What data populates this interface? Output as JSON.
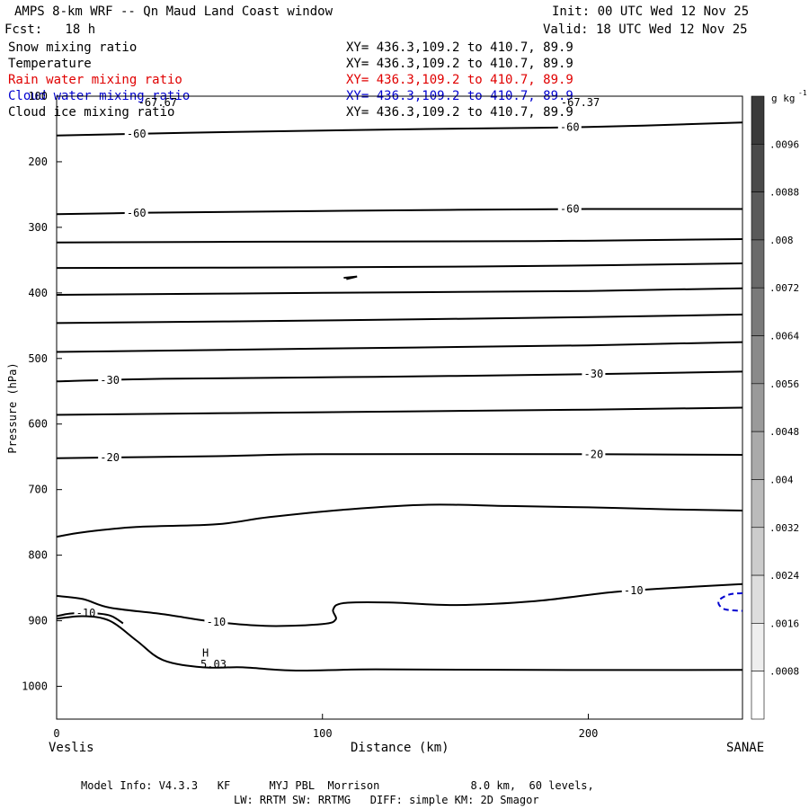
{
  "header": {
    "title": "AMPS 8-km WRF -- Qn Maud Land Coast window",
    "forecast": "Fcst:   18 h",
    "init": "Init: 00 UTC Wed 12 Nov 25",
    "valid": "Valid: 18 UTC Wed 12 Nov 25"
  },
  "legend": [
    {
      "label": "Snow mixing ratio",
      "xy": "XY= 436.3,109.2 to 410.7, 89.9",
      "color": "#000000"
    },
    {
      "label": "Temperature",
      "xy": "XY= 436.3,109.2 to 410.7, 89.9",
      "color": "#000000"
    },
    {
      "label": "Rain water mixing ratio",
      "xy": "XY= 436.3,109.2 to 410.7, 89.9",
      "color": "#e00000"
    },
    {
      "label": "Cloud water mixing ratio",
      "xy": "XY= 436.3,109.2 to 410.7, 89.9",
      "color": "#0000d0"
    },
    {
      "label": "Cloud ice mixing ratio",
      "xy": "XY= 436.3,109.2 to 410.7, 89.9",
      "color": "#000000"
    }
  ],
  "footer": {
    "line1": "Model Info: V4.3.3   KF      MYJ PBL  Morrison              8.0 km,  60 levels,",
    "line2": "LW: RRTM SW: RRTMG   DIFF: simple KM: 2D Smagor"
  },
  "colorbar": {
    "unit": "g kg",
    "unit_sup": "-1",
    "levels": [
      ".0096",
      ".0088",
      ".008",
      ".0072",
      ".0064",
      ".0056",
      ".0048",
      ".004",
      ".0032",
      ".0024",
      ".0016",
      ".0008"
    ],
    "fills": [
      "#3a3a3a",
      "#4a4a4a",
      "#5a5a5a",
      "#6a6a6a",
      "#7a7a7a",
      "#8a8a8a",
      "#9a9a9a",
      "#aaaaaa",
      "#bbbbbb",
      "#cccccc",
      "#dddddd",
      "#eeeeee",
      "#ffffff"
    ]
  },
  "chart_data": {
    "type": "contour",
    "xlabel": "Distance (km)",
    "ylabel": "Pressure (hPa)",
    "xlim": [
      0,
      258
    ],
    "ylim": [
      1050,
      100
    ],
    "x_ticks": [
      0,
      100,
      200
    ],
    "y_ticks": [
      100,
      200,
      300,
      400,
      500,
      600,
      700,
      800,
      900,
      1000
    ],
    "left_endpoint": "Veslis",
    "right_endpoint": "SANAE",
    "isotherms": [
      {
        "label": "-60",
        "points": [
          [
            0,
            160
          ],
          [
            60,
            155
          ],
          [
            140,
            150
          ],
          [
            200,
            147
          ],
          [
            258,
            140
          ]
        ]
      },
      {
        "label": "-60",
        "points": [
          [
            0,
            280
          ],
          [
            30,
            278
          ],
          [
            100,
            275
          ],
          [
            200,
            272
          ],
          [
            258,
            272
          ]
        ]
      },
      {
        "label": "",
        "points": [
          [
            0,
            323
          ],
          [
            80,
            322
          ],
          [
            180,
            321
          ],
          [
            258,
            318
          ]
        ]
      },
      {
        "label": "",
        "points": [
          [
            0,
            362
          ],
          [
            100,
            361
          ],
          [
            180,
            359
          ],
          [
            258,
            355
          ]
        ]
      },
      {
        "label": "",
        "points": [
          [
            0,
            403
          ],
          [
            100,
            400
          ],
          [
            200,
            397
          ],
          [
            258,
            393
          ]
        ]
      },
      {
        "label": "",
        "points": [
          [
            0,
            446
          ],
          [
            100,
            442
          ],
          [
            200,
            437
          ],
          [
            258,
            433
          ]
        ]
      },
      {
        "label": "",
        "points": [
          [
            0,
            490
          ],
          [
            100,
            485
          ],
          [
            200,
            480
          ],
          [
            258,
            475
          ]
        ]
      },
      {
        "label": "-30",
        "points": [
          [
            0,
            535
          ],
          [
            40,
            531
          ],
          [
            120,
            528
          ],
          [
            200,
            524
          ],
          [
            258,
            520
          ]
        ]
      },
      {
        "label": "",
        "points": [
          [
            0,
            586
          ],
          [
            100,
            582
          ],
          [
            200,
            578
          ],
          [
            258,
            575
          ]
        ]
      },
      {
        "label": "-20",
        "points": [
          [
            0,
            652
          ],
          [
            60,
            649
          ],
          [
            100,
            646
          ],
          [
            200,
            646
          ],
          [
            258,
            647
          ]
        ]
      },
      {
        "label": "",
        "points": [
          [
            0,
            772
          ],
          [
            10,
            765
          ],
          [
            30,
            757
          ],
          [
            60,
            753
          ],
          [
            80,
            742
          ],
          [
            110,
            730
          ],
          [
            140,
            723
          ],
          [
            170,
            725
          ],
          [
            200,
            727
          ],
          [
            230,
            730
          ],
          [
            258,
            732
          ]
        ]
      },
      {
        "label": "-10",
        "points": [
          [
            0,
            862
          ],
          [
            10,
            867
          ],
          [
            20,
            880
          ],
          [
            40,
            890
          ],
          [
            60,
            902
          ],
          [
            80,
            908
          ],
          [
            100,
            905
          ],
          [
            105,
            898
          ],
          [
            104,
            883
          ],
          [
            108,
            873
          ],
          [
            125,
            872
          ],
          [
            150,
            876
          ],
          [
            180,
            870
          ],
          [
            210,
            856
          ],
          [
            240,
            848
          ],
          [
            258,
            844
          ]
        ]
      },
      {
        "label": "-10",
        "points": [
          [
            0,
            893
          ],
          [
            5,
            889
          ],
          [
            12,
            888
          ],
          [
            20,
            892
          ],
          [
            25,
            904
          ]
        ]
      },
      {
        "label": "",
        "points": [
          [
            0,
            897
          ],
          [
            10,
            893
          ],
          [
            20,
            900
          ],
          [
            30,
            930
          ],
          [
            40,
            960
          ],
          [
            55,
            971
          ],
          [
            70,
            971
          ],
          [
            90,
            976
          ],
          [
            120,
            974
          ],
          [
            180,
            975
          ],
          [
            258,
            975
          ]
        ]
      }
    ],
    "top_labels": [
      "-67.67",
      "-67.37"
    ],
    "annotations": [
      {
        "text": "H",
        "x": 56,
        "p": 955
      },
      {
        "text": "5.03",
        "x": 59,
        "p": 972
      }
    ],
    "cloud_water_contour": {
      "color": "#0000d0",
      "points": [
        [
          258,
          858
        ],
        [
          253,
          860
        ],
        [
          249,
          870
        ],
        [
          251,
          882
        ],
        [
          258,
          885
        ]
      ]
    }
  }
}
